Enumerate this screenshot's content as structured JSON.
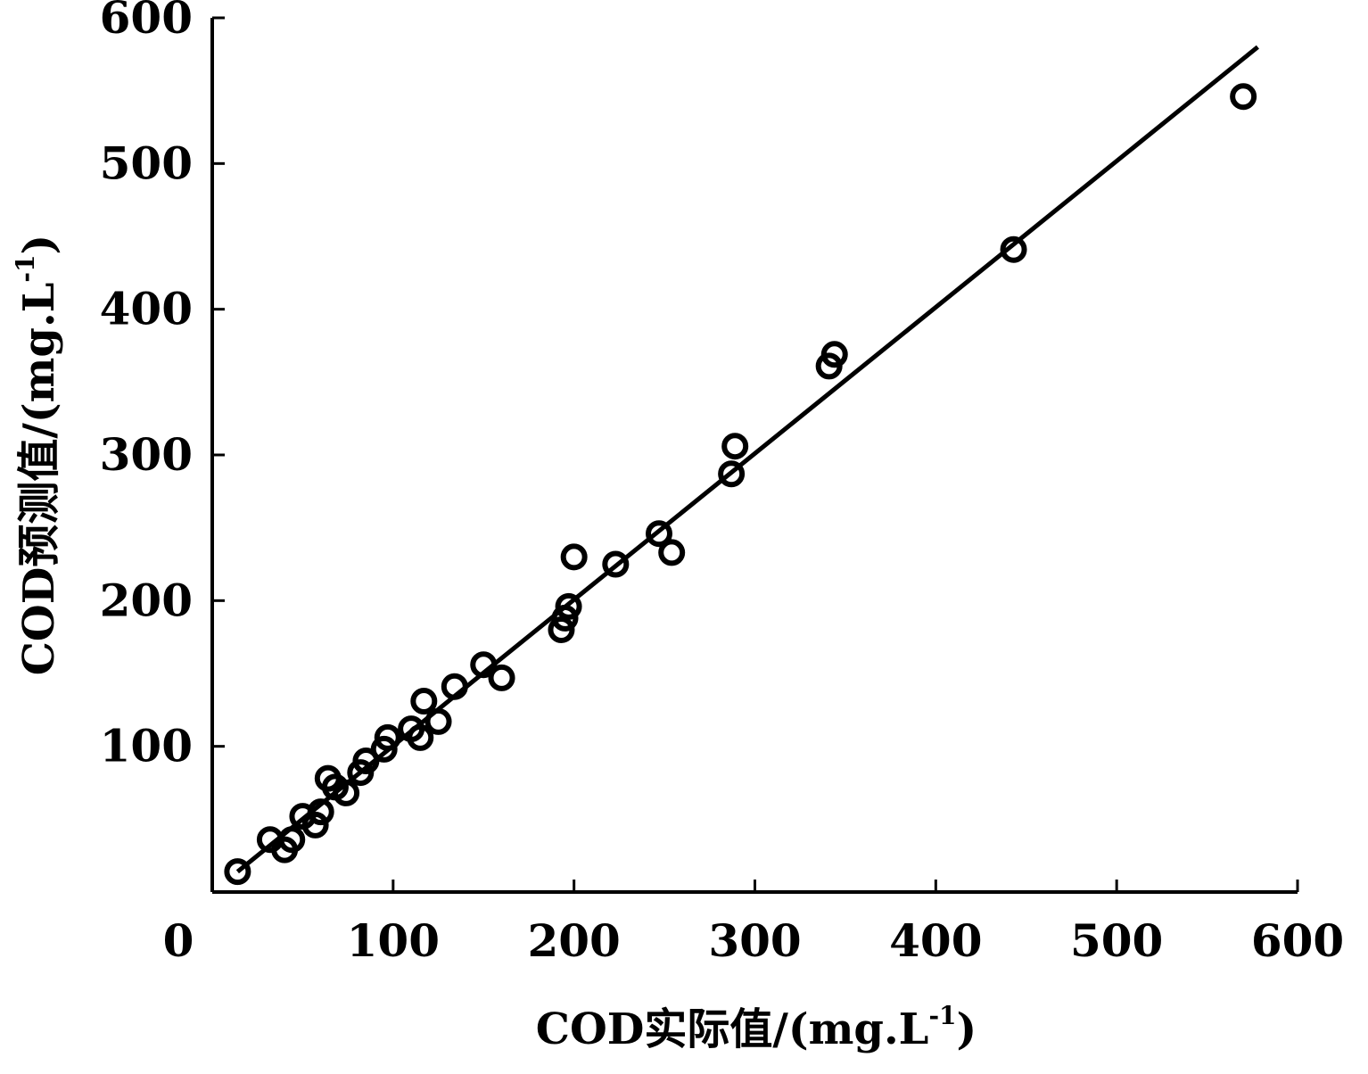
{
  "chart_data": {
    "type": "scatter",
    "title": "",
    "xlabel": "COD实际值/(mg.L⁻¹)",
    "xlabel_parts": {
      "main": "COD实际值/(mg.L",
      "sup": "-1",
      "close": ")"
    },
    "ylabel": "COD预测值/(mg.L⁻¹)",
    "ylabel_parts": {
      "main": "COD预测值/(mg.L",
      "sup": "-1",
      "close": ")"
    },
    "xlim": [
      0,
      600
    ],
    "ylim": [
      0,
      600
    ],
    "xticks": [
      "0",
      "100",
      "200",
      "300",
      "400",
      "500",
      "600"
    ],
    "yticks": [
      "100",
      "200",
      "300",
      "400",
      "500",
      "600"
    ],
    "grid": false,
    "points": [
      {
        "x": 14,
        "y": 14
      },
      {
        "x": 32,
        "y": 36
      },
      {
        "x": 40,
        "y": 29
      },
      {
        "x": 44,
        "y": 36
      },
      {
        "x": 50,
        "y": 52
      },
      {
        "x": 57,
        "y": 46
      },
      {
        "x": 60,
        "y": 55
      },
      {
        "x": 64,
        "y": 78
      },
      {
        "x": 68,
        "y": 72
      },
      {
        "x": 74,
        "y": 68
      },
      {
        "x": 82,
        "y": 82
      },
      {
        "x": 85,
        "y": 90
      },
      {
        "x": 95,
        "y": 98
      },
      {
        "x": 97,
        "y": 106
      },
      {
        "x": 110,
        "y": 112
      },
      {
        "x": 115,
        "y": 106
      },
      {
        "x": 117,
        "y": 131
      },
      {
        "x": 125,
        "y": 117
      },
      {
        "x": 134,
        "y": 141
      },
      {
        "x": 150,
        "y": 156
      },
      {
        "x": 160,
        "y": 147
      },
      {
        "x": 193,
        "y": 180
      },
      {
        "x": 195,
        "y": 188
      },
      {
        "x": 197,
        "y": 196
      },
      {
        "x": 200,
        "y": 230
      },
      {
        "x": 223,
        "y": 225
      },
      {
        "x": 247,
        "y": 246
      },
      {
        "x": 254,
        "y": 233
      },
      {
        "x": 287,
        "y": 287
      },
      {
        "x": 289,
        "y": 306
      },
      {
        "x": 341,
        "y": 361
      },
      {
        "x": 344,
        "y": 369
      },
      {
        "x": 443,
        "y": 441
      },
      {
        "x": 570,
        "y": 546
      }
    ],
    "fit_line": {
      "x": [
        14,
        578
      ],
      "y": [
        14,
        580
      ]
    }
  }
}
